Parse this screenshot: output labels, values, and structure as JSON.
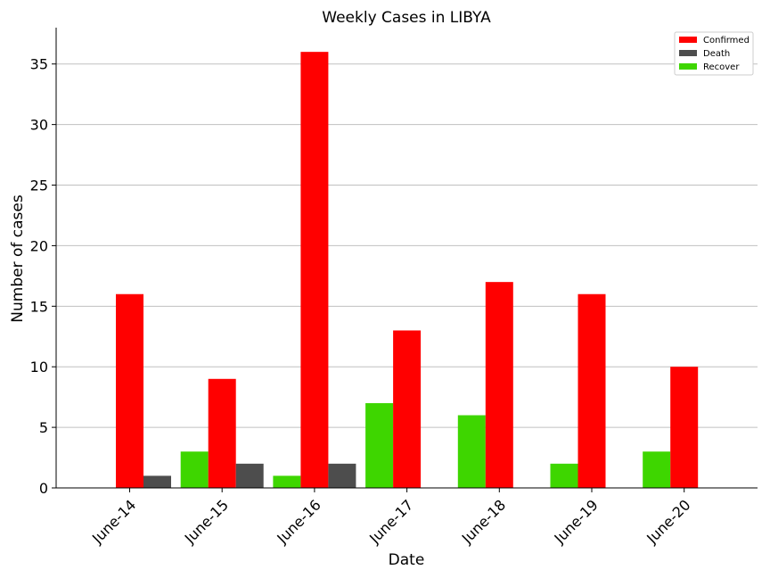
{
  "chart_data": {
    "type": "bar",
    "title": "Weekly Cases in LIBYA",
    "xlabel": "Date",
    "ylabel": "Number of cases",
    "categories": [
      "June-14",
      "June-15",
      "June-16",
      "June-17",
      "June-18",
      "June-19",
      "June-20"
    ],
    "series": [
      {
        "name": "Confirmed",
        "color": "#ff0000",
        "values": [
          16,
          9,
          36,
          13,
          17,
          16,
          10
        ]
      },
      {
        "name": "Death",
        "color": "#4d4d4d",
        "values": [
          1,
          2,
          2,
          0,
          0,
          0,
          0
        ]
      },
      {
        "name": "Recover",
        "color": "#3ed600",
        "values": [
          0,
          3,
          1,
          7,
          6,
          2,
          3
        ]
      }
    ],
    "ylim": [
      0,
      38
    ],
    "yticks": [
      0,
      5,
      10,
      15,
      20,
      25,
      30,
      35
    ],
    "grid": "horizontal",
    "legend_position": "top-right"
  }
}
